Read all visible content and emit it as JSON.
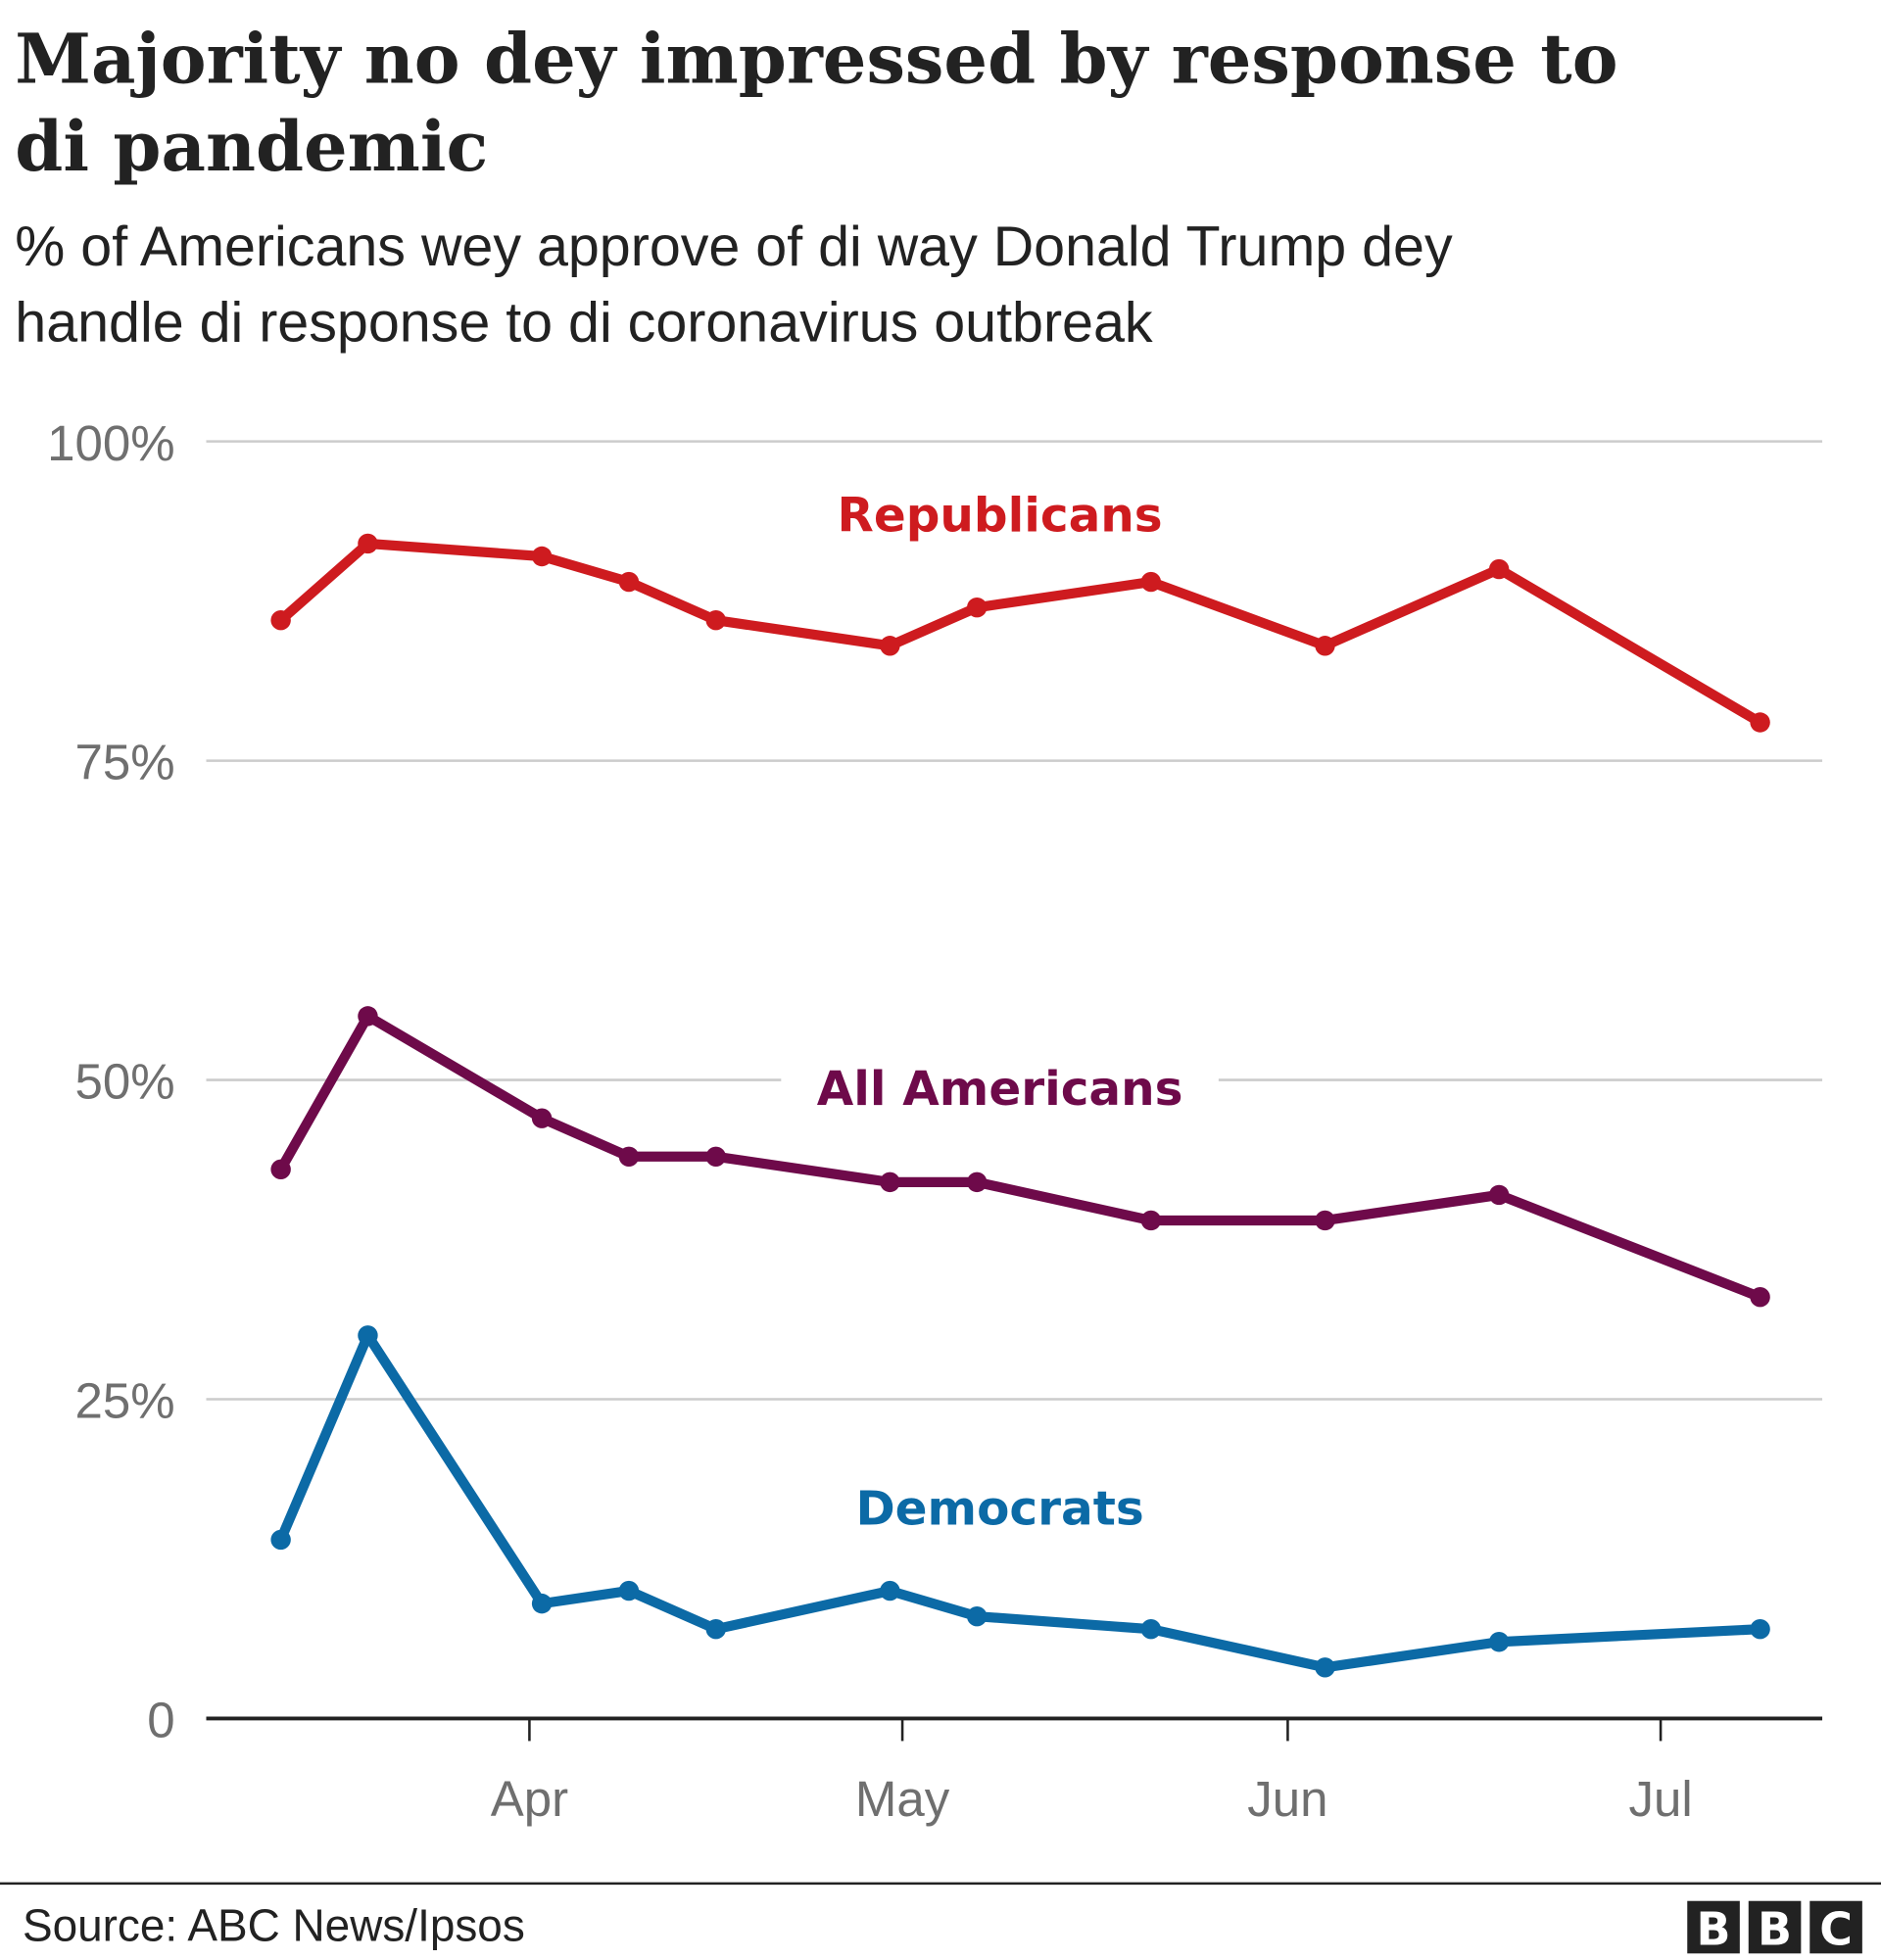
{
  "chart_data": {
    "type": "line",
    "title": "Majority no dey impressed by response to di pandemic",
    "title_lines": [
      "Majority no dey impressed by response to",
      "di pandemic"
    ],
    "subtitle": "% of Americans wey approve of di way Donald Trump dey handle di response to di coronavirus outbreak",
    "subtitle_lines": [
      "% of Americans wey approve of di way Donald Trump dey",
      "handle di response to di coronavirus outbreak"
    ],
    "x": [
      "2020-03-12",
      "2020-03-19",
      "2020-04-02",
      "2020-04-09",
      "2020-04-16",
      "2020-04-30",
      "2020-05-07",
      "2020-05-21",
      "2020-06-04",
      "2020-06-18",
      "2020-07-09"
    ],
    "xlim": [
      "2020-03-06",
      "2020-07-14"
    ],
    "x_ticks": [
      {
        "date": "2020-04-01",
        "label": "Apr"
      },
      {
        "date": "2020-05-01",
        "label": "May"
      },
      {
        "date": "2020-06-01",
        "label": "Jun"
      },
      {
        "date": "2020-07-01",
        "label": "Jul"
      }
    ],
    "ylim": [
      0,
      100
    ],
    "y_ticks": [
      {
        "value": 0,
        "label": "0"
      },
      {
        "value": 25,
        "label": "25%"
      },
      {
        "value": 50,
        "label": "50%"
      },
      {
        "value": 75,
        "label": "75%"
      },
      {
        "value": 100,
        "label": "100%"
      }
    ],
    "grid": true,
    "legend": "inline labels",
    "series": [
      {
        "name": "Republicans",
        "color": "#ce1b1f",
        "values": [
          86,
          92,
          91,
          89,
          86,
          84,
          87,
          89,
          84,
          90,
          78
        ]
      },
      {
        "name": "All Americans",
        "color": "#6e0a4a",
        "values": [
          43,
          55,
          47,
          44,
          44,
          42,
          42,
          39,
          39,
          41,
          33
        ]
      },
      {
        "name": "Democrats",
        "color": "#0c6aa6",
        "values": [
          14,
          30,
          9,
          10,
          7,
          10,
          8,
          7,
          4,
          6,
          7
        ]
      }
    ]
  },
  "footer": {
    "source": "Source: ABC News/Ipsos",
    "logo": "BBC"
  }
}
